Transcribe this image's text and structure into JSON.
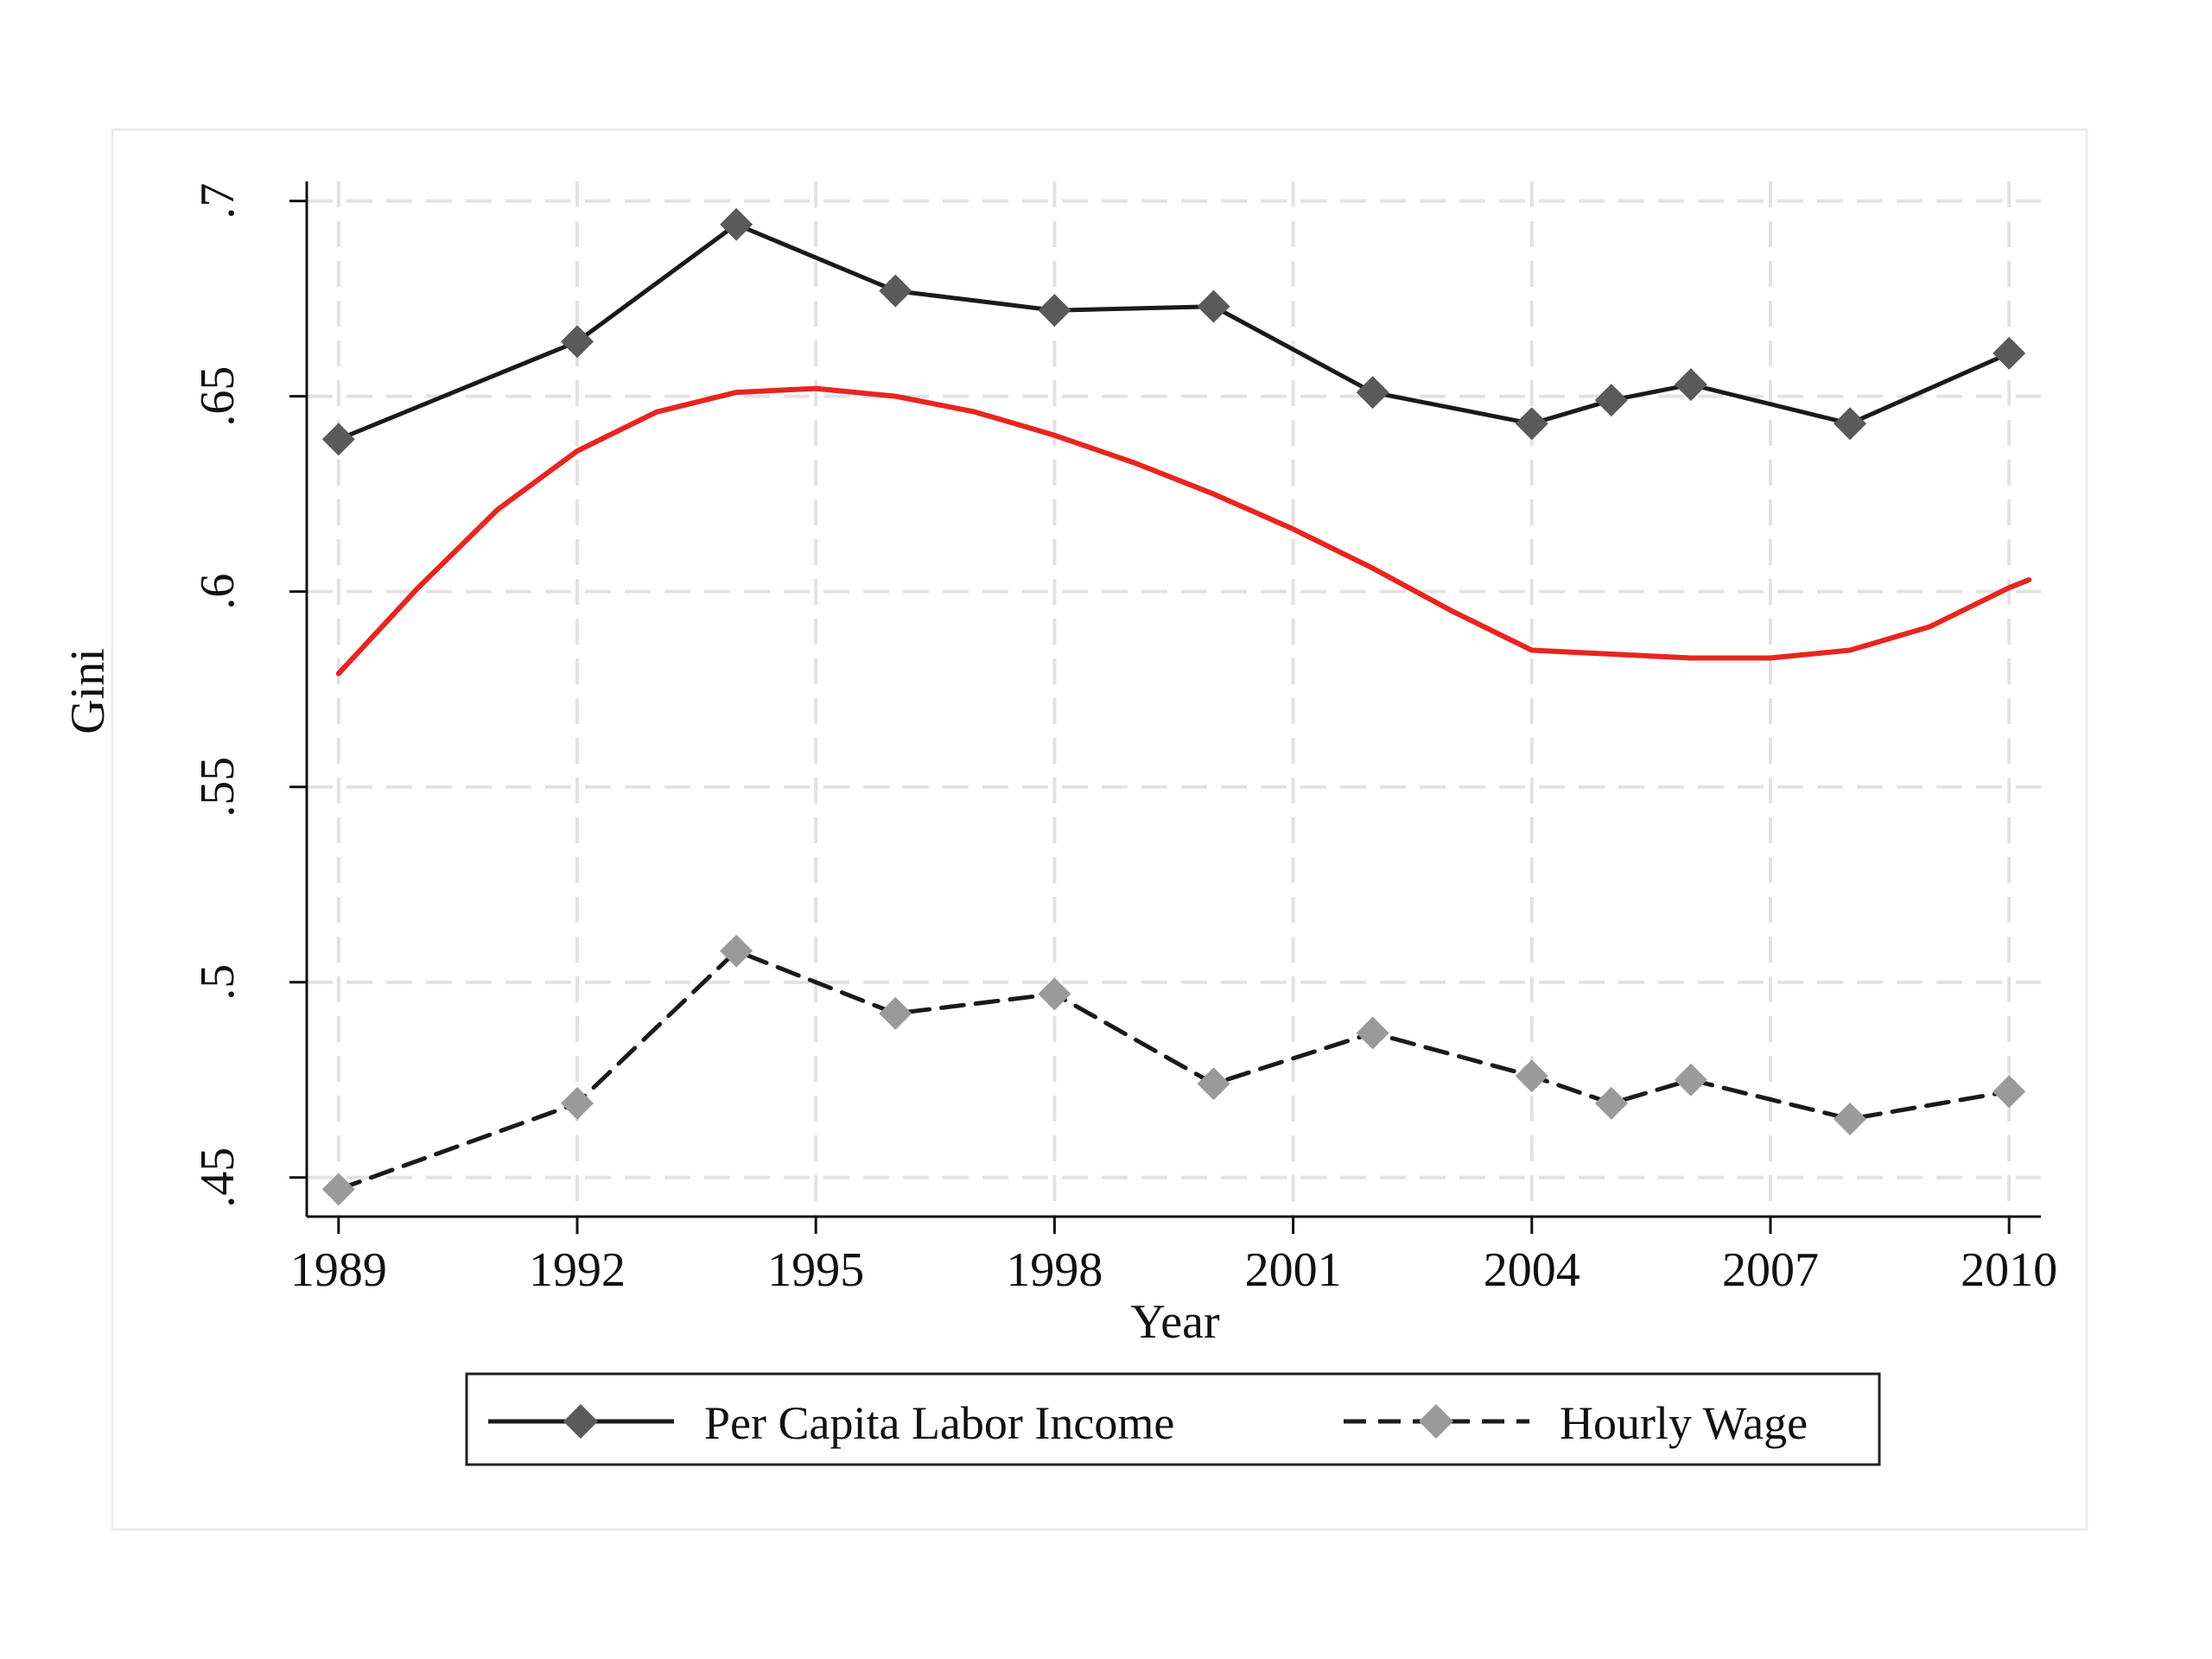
{
  "chart_data": {
    "type": "line",
    "title": "",
    "xlabel": "Year",
    "ylabel": "Gini",
    "xlim": [
      1988.6,
      2010.4
    ],
    "ylim": [
      0.44,
      0.705
    ],
    "x_ticks": [
      1989,
      1992,
      1995,
      1998,
      2001,
      2004,
      2007,
      2010
    ],
    "x_tick_labels": [
      "1989",
      "1992",
      "1995",
      "1998",
      "2001",
      "2004",
      "2007",
      "2010"
    ],
    "y_ticks": [
      0.45,
      0.5,
      0.55,
      0.6,
      0.65,
      0.7
    ],
    "y_tick_labels": [
      ".45",
      ".5",
      ".55",
      ".6",
      ".65",
      ".7"
    ],
    "grid": true,
    "legend_position": "bottom",
    "series": [
      {
        "name": "Per Capita Labor Income",
        "color": "#1a1a1a",
        "marker_color": "#5a5a5a",
        "dash": "solid",
        "marker": "diamond",
        "x": [
          1989,
          1992,
          1994,
          1996,
          1998,
          2000,
          2002,
          2004,
          2005,
          2006,
          2008,
          2010
        ],
        "y": [
          0.639,
          0.664,
          0.694,
          0.677,
          0.672,
          0.673,
          0.651,
          0.643,
          0.649,
          0.653,
          0.643,
          0.661
        ]
      },
      {
        "name": "Hourly Wage",
        "color": "#1a1a1a",
        "marker_color": "#9a9a9a",
        "dash": "dashed",
        "marker": "diamond",
        "x": [
          1989,
          1992,
          1994,
          1996,
          1998,
          2000,
          2002,
          2004,
          2005,
          2006,
          2008,
          2010
        ],
        "y": [
          0.447,
          0.469,
          0.508,
          0.492,
          0.497,
          0.474,
          0.487,
          0.476,
          0.469,
          0.475,
          0.465,
          0.472
        ]
      },
      {
        "color": "#e8251f",
        "dash": "solid",
        "marker": "none",
        "x": [
          1989,
          1990,
          1991,
          1992,
          1993,
          1994,
          1995,
          1996,
          1997,
          1998,
          1999,
          2000,
          2001,
          2002,
          2003,
          2004,
          2005,
          2006,
          2007,
          2008,
          2009,
          2010,
          2010.25
        ],
        "y": [
          0.579,
          0.601,
          0.621,
          0.636,
          0.646,
          0.651,
          0.652,
          0.65,
          0.646,
          0.64,
          0.633,
          0.625,
          0.616,
          0.606,
          0.595,
          0.585,
          0.584,
          0.583,
          0.583,
          0.585,
          0.591,
          0.601,
          0.603
        ]
      }
    ]
  }
}
